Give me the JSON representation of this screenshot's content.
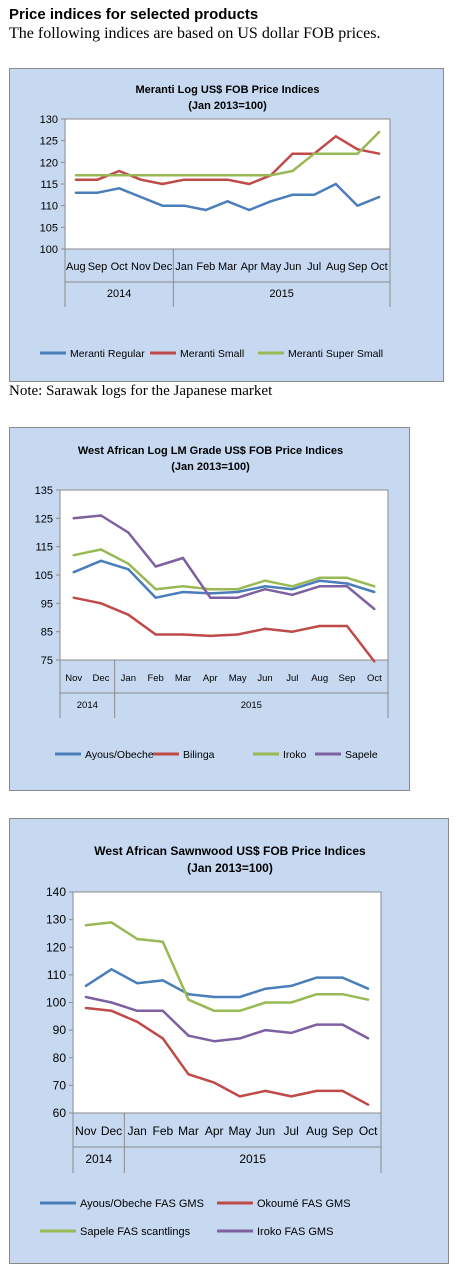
{
  "header": {
    "title": "Price indices for selected products",
    "subtitle": "The following indices are based on US dollar FOB prices."
  },
  "note": "Note: Sarawak logs for the Japanese market",
  "chart_data": [
    {
      "type": "line",
      "title": "Meranti Log US$ FOB Price Indices",
      "subtitle": "(Jan 2013=100)",
      "categories": [
        "Aug",
        "Sep",
        "Oct",
        "Nov",
        "Dec",
        "Jan",
        "Feb",
        "Mar",
        "Apr",
        "May",
        "Jun",
        "Jul",
        "Aug",
        "Sep",
        "Oct"
      ],
      "year_groups": [
        {
          "label": "2014",
          "count": 5
        },
        {
          "label": "2015",
          "count": 10
        }
      ],
      "ylim": [
        100,
        130
      ],
      "yticks": [
        100,
        105,
        110,
        115,
        120,
        125,
        130
      ],
      "grid": false,
      "legend": "bottom",
      "series": [
        {
          "name": "Meranti Regular",
          "color": "#4a7ebb",
          "values": [
            113,
            113,
            114,
            112,
            110,
            110,
            109,
            111,
            109,
            111,
            112.5,
            112.5,
            115,
            110,
            112
          ]
        },
        {
          "name": "Meranti Small",
          "color": "#be4b48",
          "values": [
            116,
            116,
            118,
            116,
            115,
            116,
            116,
            116,
            115,
            117,
            122,
            122,
            126,
            123,
            122
          ]
        },
        {
          "name": "Meranti Super Small",
          "color": "#98b954",
          "values": [
            117,
            117,
            117,
            117,
            117,
            117,
            117,
            117,
            117,
            117,
            118,
            122,
            122,
            122,
            127
          ]
        }
      ]
    },
    {
      "type": "line",
      "title": "West African Log LM Grade US$ FOB Price Indices",
      "subtitle": "(Jan 2013=100)",
      "categories": [
        "Nov",
        "Dec",
        "Jan",
        "Feb",
        "Mar",
        "Apr",
        "May",
        "Jun",
        "Jul",
        "Aug",
        "Sep",
        "Oct"
      ],
      "year_groups": [
        {
          "label": "2014",
          "count": 2
        },
        {
          "label": "2015",
          "count": 10
        }
      ],
      "ylim": [
        75,
        135
      ],
      "yticks": [
        75,
        85,
        95,
        105,
        115,
        125,
        135
      ],
      "grid": false,
      "legend": "bottom",
      "series": [
        {
          "name": "Ayous/Obeche",
          "color": "#4a7ebb",
          "values": [
            106,
            110,
            107,
            97,
            99,
            98.5,
            99,
            101,
            100,
            103,
            102,
            99
          ]
        },
        {
          "name": "Bilinga",
          "color": "#be4b48",
          "values": [
            97,
            95,
            91,
            84,
            84,
            83.5,
            84,
            86,
            85,
            87,
            87,
            73
          ]
        },
        {
          "name": "Iroko",
          "color": "#98b954",
          "values": [
            112,
            114,
            109,
            100,
            101,
            100,
            100,
            103,
            101,
            104,
            104,
            101
          ]
        },
        {
          "name": "Sapele",
          "color": "#7d60a0",
          "values": [
            125,
            126,
            120,
            108,
            111,
            97,
            97,
            100,
            98,
            101,
            101,
            93
          ]
        }
      ]
    },
    {
      "type": "line",
      "title": "West African Sawnwood US$ FOB Price Indices",
      "subtitle": "(Jan 2013=100)",
      "categories": [
        "Nov",
        "Dec",
        "Jan",
        "Feb",
        "Mar",
        "Apr",
        "May",
        "Jun",
        "Jul",
        "Aug",
        "Sep",
        "Oct"
      ],
      "year_groups": [
        {
          "label": "2014",
          "count": 2
        },
        {
          "label": "2015",
          "count": 10
        }
      ],
      "ylim": [
        60,
        140
      ],
      "yticks": [
        60,
        70,
        80,
        90,
        100,
        110,
        120,
        130,
        140
      ],
      "grid": false,
      "legend": "bottom",
      "series": [
        {
          "name": "Ayous/Obeche  FAS GMS",
          "color": "#4a7ebb",
          "values": [
            106,
            112,
            107,
            108,
            103,
            102,
            102,
            105,
            106,
            109,
            109,
            105
          ]
        },
        {
          "name": "Okoumé  FAS GMS",
          "color": "#be4b48",
          "values": [
            98,
            97,
            93,
            87,
            74,
            71,
            66,
            68,
            66,
            68,
            68,
            63
          ]
        },
        {
          "name": "Sapele FAS scantlings",
          "color": "#98b954",
          "values": [
            128,
            129,
            123,
            122,
            101,
            97,
            97,
            100,
            100,
            103,
            103,
            101
          ]
        },
        {
          "name": "Iroko FAS GMS",
          "color": "#7d60a0",
          "values": [
            102,
            100,
            97,
            97,
            88,
            86,
            87,
            90,
            89,
            92,
            92,
            87
          ]
        }
      ]
    }
  ]
}
